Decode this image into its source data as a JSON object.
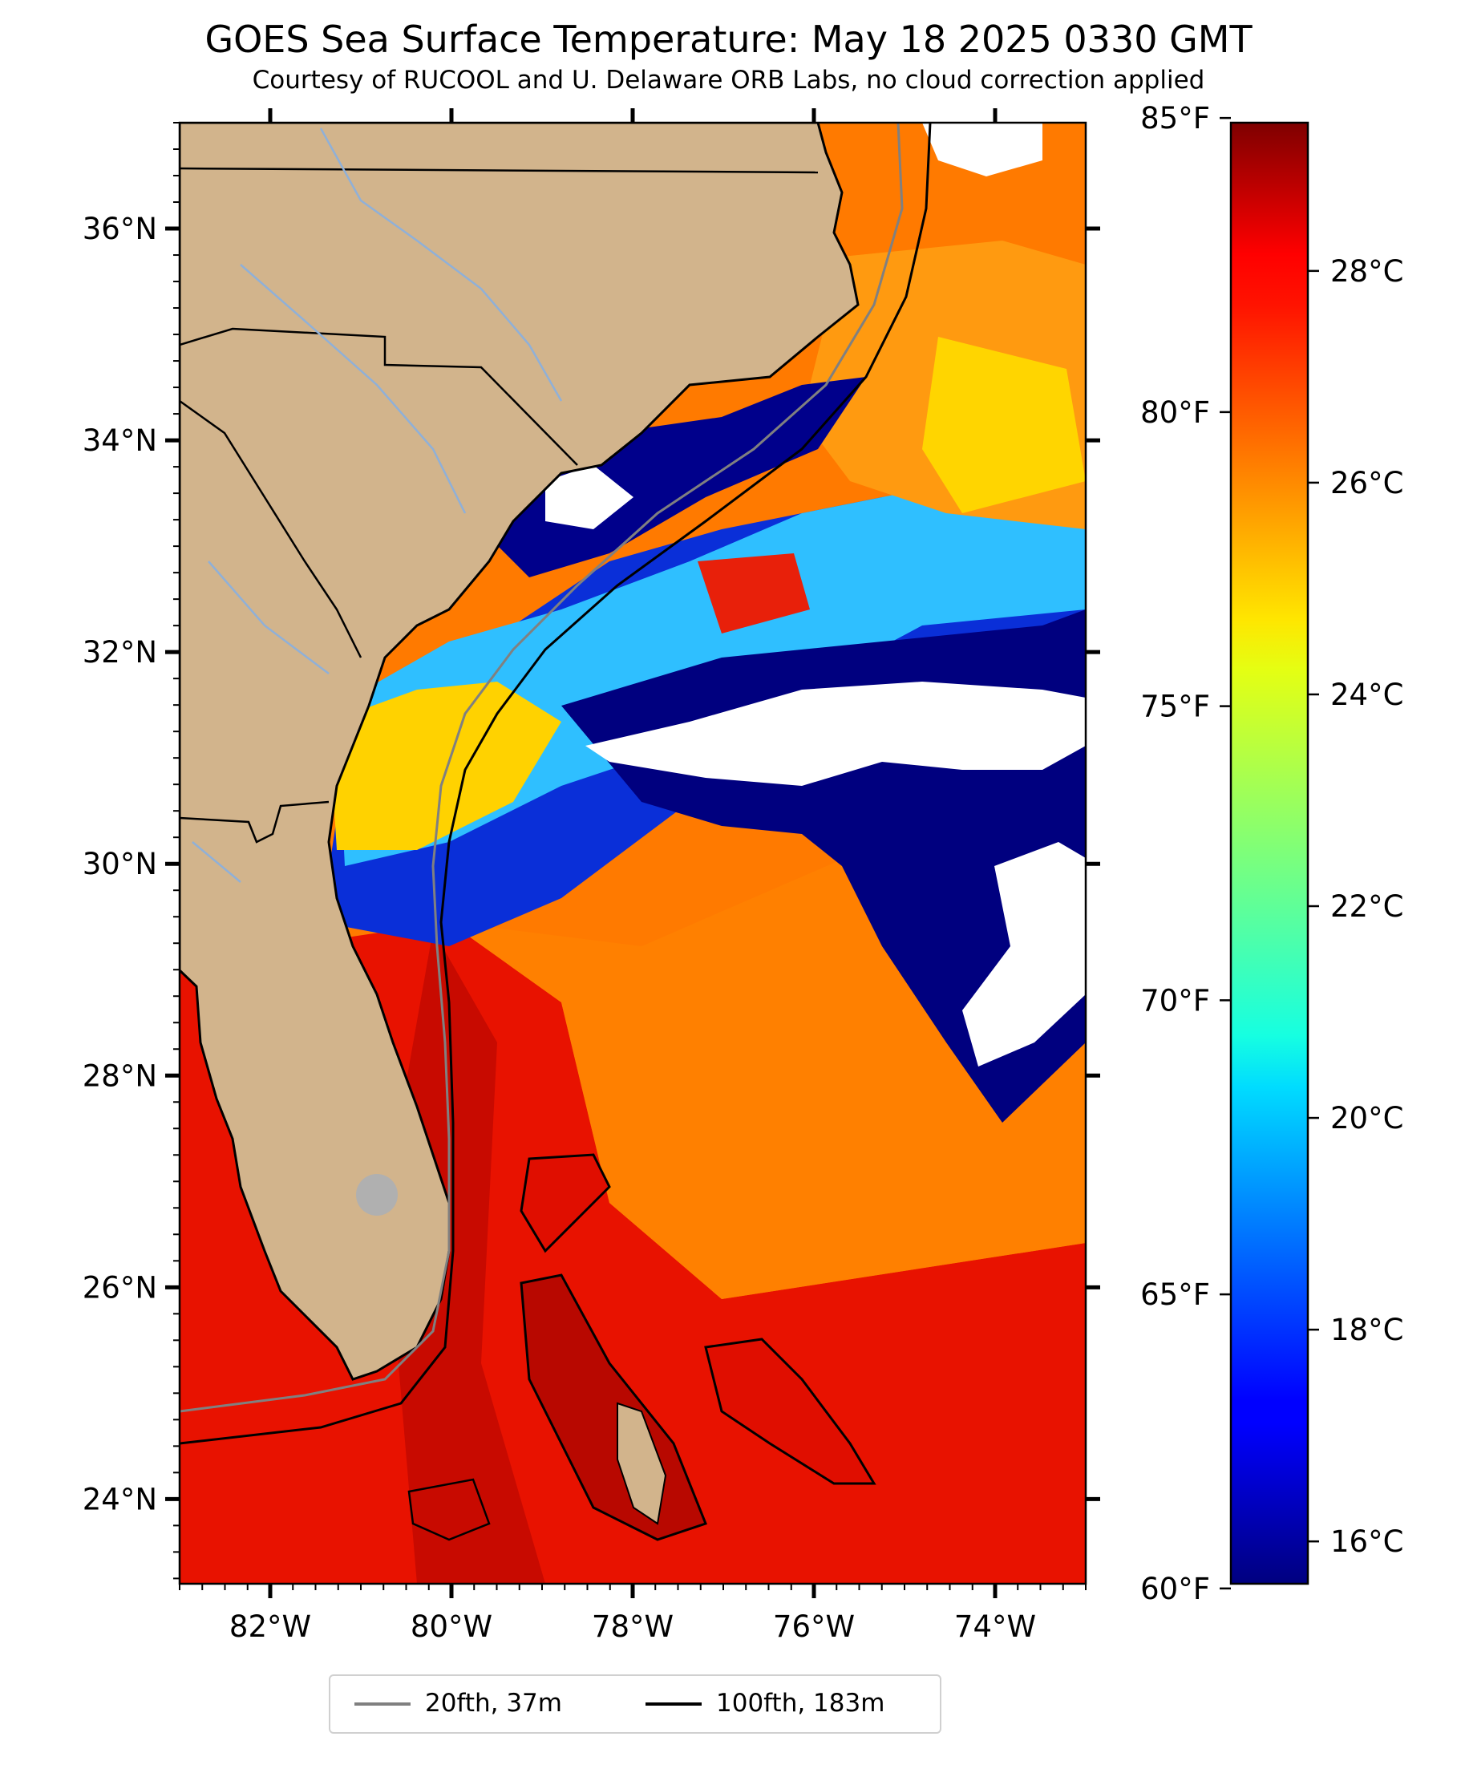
{
  "title": "GOES Sea Surface Temperature: May 18 2025 0330 GMT",
  "subtitle": "Courtesy of RUCOOL and U. Delaware ORB Labs, no cloud correction applied",
  "map": {
    "lon_range": [
      -83.0,
      -73.0
    ],
    "lat_range": [
      23.2,
      37.0
    ],
    "lat_ticks": [
      {
        "value": 36,
        "label": "36°N"
      },
      {
        "value": 34,
        "label": "34°N"
      },
      {
        "value": 32,
        "label": "32°N"
      },
      {
        "value": 30,
        "label": "30°N"
      },
      {
        "value": 28,
        "label": "28°N"
      },
      {
        "value": 26,
        "label": "26°N"
      },
      {
        "value": 24,
        "label": "24°N"
      }
    ],
    "lon_ticks": [
      {
        "value": -82,
        "label": "82°W"
      },
      {
        "value": -80,
        "label": "80°W"
      },
      {
        "value": -78,
        "label": "78°W"
      },
      {
        "value": -76,
        "label": "76°W"
      },
      {
        "value": -74,
        "label": "74°W"
      }
    ],
    "land_color": "#d2b48c",
    "ocean_colormap": "jet",
    "cloud_mask_color": "#ffffff"
  },
  "colorbar": {
    "colormap": "jet",
    "celsius_range": [
      15.6,
      29.4
    ],
    "celsius_ticks": [
      {
        "value": 16,
        "label": "16°C"
      },
      {
        "value": 18,
        "label": "18°C"
      },
      {
        "value": 20,
        "label": "20°C"
      },
      {
        "value": 22,
        "label": "22°C"
      },
      {
        "value": 24,
        "label": "24°C"
      },
      {
        "value": 26,
        "label": "26°C"
      },
      {
        "value": 28,
        "label": "28°C"
      }
    ],
    "fahrenheit_ticks": [
      {
        "value": 60,
        "label": "60°F"
      },
      {
        "value": 65,
        "label": "65°F"
      },
      {
        "value": 70,
        "label": "70°F"
      },
      {
        "value": 75,
        "label": "75°F"
      },
      {
        "value": 80,
        "label": "80°F"
      },
      {
        "value": 85,
        "label": "85°F"
      }
    ]
  },
  "legend": {
    "items": [
      {
        "label": "20fth, 37m",
        "color": "#808080"
      },
      {
        "label": "100fth, 183m",
        "color": "#000000"
      }
    ]
  }
}
